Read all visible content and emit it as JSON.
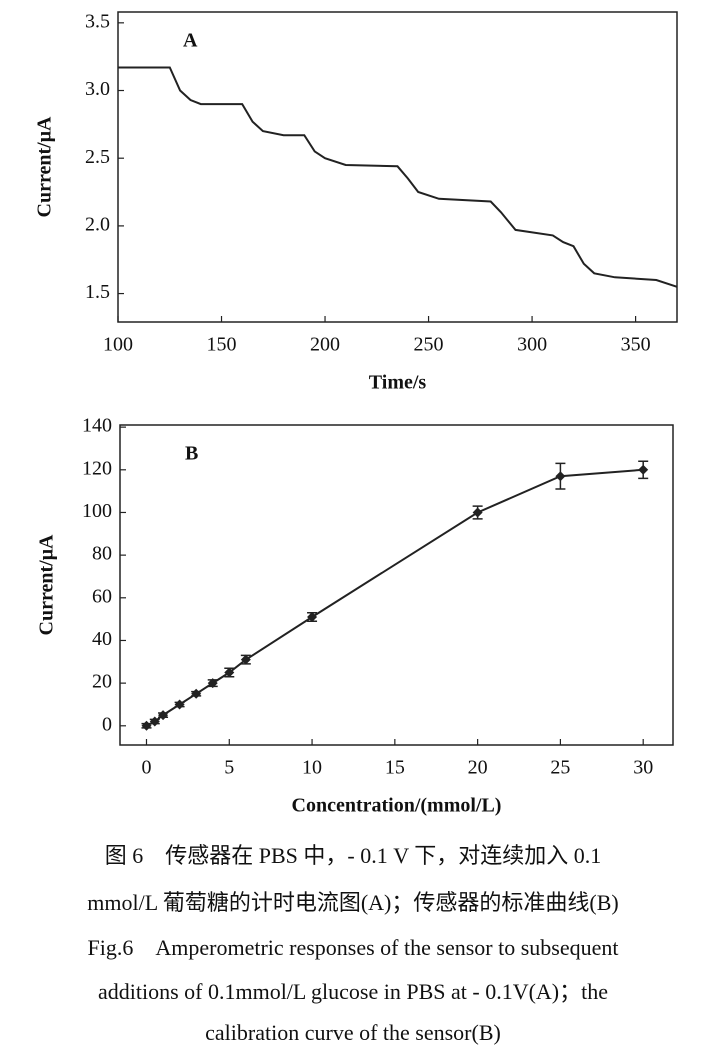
{
  "chart_data": [
    {
      "type": "line",
      "annotation": "A",
      "x_label": "Time/s",
      "y_label": "Current/μA",
      "x": [
        100,
        125,
        130,
        135,
        140,
        160,
        165,
        170,
        180,
        190,
        195,
        200,
        210,
        235,
        240,
        245,
        255,
        280,
        285,
        292,
        310,
        315,
        320,
        325,
        330,
        340,
        360,
        370
      ],
      "values": [
        3.17,
        3.17,
        3.0,
        2.93,
        2.9,
        2.9,
        2.77,
        2.7,
        2.67,
        2.67,
        2.55,
        2.5,
        2.45,
        2.44,
        2.35,
        2.25,
        2.2,
        2.18,
        2.1,
        1.97,
        1.93,
        1.88,
        1.85,
        1.72,
        1.65,
        1.62,
        1.6,
        1.55
      ],
      "color": "#222222",
      "xlim": [
        100,
        370
      ],
      "xticks": [
        100,
        150,
        200,
        250,
        300,
        350
      ],
      "ylim": [
        1.29,
        3.58
      ],
      "yticks": [
        1.5,
        {
          "value": 2,
          "label": "2.0"
        },
        2.5,
        {
          "value": 3,
          "label": "3.0"
        },
        3.5
      ]
    },
    {
      "type": "errorline",
      "annotation": "B",
      "x_label": "Concentration/(mmol/L)",
      "y_label": "Current/μA",
      "x": [
        0,
        0.5,
        1,
        2,
        3,
        4,
        5,
        6,
        10,
        20,
        25,
        30
      ],
      "values": [
        0,
        2,
        5,
        10,
        15,
        20,
        25,
        31,
        51,
        100,
        117,
        120
      ],
      "errors": [
        1,
        1,
        1,
        1,
        1,
        1.5,
        2,
        2,
        2,
        3,
        6,
        4
      ],
      "color": "#222222",
      "xlim": [
        -1.6,
        31.8
      ],
      "xticks": [
        0,
        5,
        10,
        15,
        20,
        25,
        30
      ],
      "ylim": [
        -9,
        141
      ],
      "yticks": [
        0,
        20,
        40,
        60,
        80,
        100,
        120,
        140
      ]
    }
  ],
  "caption": [
    "图 6　传感器在 PBS 中，- 0.1 V 下，对连续加入 0.1",
    "mmol/L 葡萄糖的计时电流图(A)；传感器的标准曲线(B)",
    "Fig.6　Amperometric responses of the sensor to subsequent",
    "additions of 0.1mmol/L glucose in PBS at - 0.1V(A)；the",
    "calibration curve of the sensor(B)"
  ]
}
